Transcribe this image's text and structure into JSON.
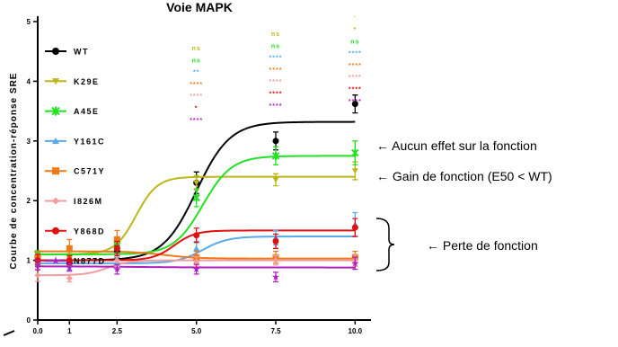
{
  "chart_data": {
    "type": "line",
    "title": "Voie MAPK",
    "xlabel": "",
    "ylabel": "Courbe de concentration-réponse SRE",
    "xlim": [
      0,
      10.5
    ],
    "ylim": [
      0,
      5
    ],
    "x_ticks": [
      {
        "v": 0,
        "label": "0.0"
      },
      {
        "v": 1,
        "label": "1"
      },
      {
        "v": 2.5,
        "label": "2.5"
      },
      {
        "v": 5,
        "label": "5.0"
      },
      {
        "v": 7.5,
        "label": "7.5"
      },
      {
        "v": 10,
        "label": "10.0"
      }
    ],
    "y_ticks": [
      {
        "v": 0,
        "label": "0"
      },
      {
        "v": 1,
        "label": "1"
      },
      {
        "v": 2,
        "label": "2"
      },
      {
        "v": 3,
        "label": "3"
      },
      {
        "v": 4,
        "label": "4"
      },
      {
        "v": 5,
        "label": "5"
      }
    ],
    "legend_position": "left",
    "series": [
      {
        "name": "WT",
        "color": "#000000",
        "marker": "circle",
        "fit": {
          "bottom": 1.0,
          "top": 3.32,
          "ec50": 5.0,
          "hill": 1.9
        },
        "x": [
          0,
          1,
          2.5,
          5,
          7.5,
          10
        ],
        "y": [
          1.0,
          0.95,
          1.15,
          2.3,
          3.0,
          3.62
        ],
        "err": [
          0.06,
          0.06,
          0.1,
          0.18,
          0.15,
          0.15
        ]
      },
      {
        "name": "K29E",
        "color": "#bdb61a",
        "marker": "triangle-down",
        "fit": {
          "bottom": 1.1,
          "top": 2.4,
          "ec50": 3.1,
          "hill": 3.0
        },
        "x": [
          0,
          1,
          2.5,
          5,
          7.5,
          10
        ],
        "y": [
          1.1,
          1.08,
          1.2,
          2.3,
          2.35,
          2.5
        ],
        "err": [
          0.06,
          0.06,
          0.1,
          0.12,
          0.1,
          0.15
        ]
      },
      {
        "name": "A45E",
        "color": "#22e022",
        "marker": "cross",
        "fit": {
          "bottom": 1.1,
          "top": 2.75,
          "ec50": 5.2,
          "hill": 2.2
        },
        "x": [
          0,
          1,
          2.5,
          5,
          7.5,
          10
        ],
        "y": [
          1.1,
          1.05,
          1.25,
          2.05,
          2.75,
          2.8
        ],
        "err": [
          0.06,
          0.06,
          0.12,
          0.15,
          0.15,
          0.2
        ]
      },
      {
        "name": "Y161C",
        "color": "#5aaae8",
        "marker": "triangle-up",
        "fit": {
          "bottom": 0.95,
          "top": 1.4,
          "ec50": 5.2,
          "hill": 2.5
        },
        "x": [
          0,
          1,
          2.5,
          5,
          7.5,
          10
        ],
        "y": [
          0.95,
          0.92,
          0.95,
          1.2,
          1.38,
          1.6
        ],
        "err": [
          0.1,
          0.08,
          0.1,
          0.12,
          0.12,
          0.2
        ]
      },
      {
        "name": "C571Y",
        "color": "#f07a1a",
        "marker": "square",
        "fit": {
          "bottom": 1.15,
          "top": 1.03,
          "ec50": 4.0,
          "hill": 2.0
        },
        "x": [
          0,
          1,
          2.5,
          5,
          7.5,
          10
        ],
        "y": [
          1.05,
          1.2,
          1.35,
          1.05,
          1.05,
          1.05
        ],
        "err": [
          0.1,
          0.15,
          0.15,
          0.1,
          0.1,
          0.1
        ]
      },
      {
        "name": "I826M",
        "color": "#f29c9c",
        "marker": "diamond",
        "fit": {
          "bottom": 0.75,
          "top": 1.0,
          "ec50": 2.2,
          "hill": 3.0
        },
        "x": [
          0,
          1,
          2.5,
          5,
          7.5,
          10
        ],
        "y": [
          0.75,
          0.7,
          1.0,
          0.98,
          1.0,
          1.0
        ],
        "err": [
          0.1,
          0.06,
          0.1,
          0.08,
          0.08,
          0.1
        ]
      },
      {
        "name": "Y868D",
        "color": "#e01010",
        "marker": "circle",
        "fit": {
          "bottom": 1.0,
          "top": 1.5,
          "ec50": 4.3,
          "hill": 3.0
        },
        "x": [
          0,
          1,
          2.5,
          5,
          7.5,
          10
        ],
        "y": [
          1.0,
          1.0,
          1.2,
          1.42,
          1.32,
          1.55
        ],
        "err": [
          0.1,
          0.08,
          0.12,
          0.12,
          0.12,
          0.15
        ]
      },
      {
        "name": "N877D",
        "color": "#b020c0",
        "marker": "star",
        "fit": {
          "bottom": 0.9,
          "top": 0.88,
          "ec50": 3.0,
          "hill": 1.0
        },
        "x": [
          0,
          1,
          2.5,
          5,
          7.5,
          10
        ],
        "y": [
          0.92,
          0.88,
          0.85,
          0.85,
          0.72,
          0.95
        ],
        "err": [
          0.08,
          0.06,
          0.08,
          0.08,
          0.08,
          0.1
        ]
      }
    ],
    "significance": [
      {
        "x": 5,
        "labels": [
          {
            "text": "ns",
            "color": "#bdb61a"
          },
          {
            "text": "ns",
            "color": "#22e022"
          },
          {
            "text": "**",
            "color": "#5aaae8"
          },
          {
            "text": "****",
            "color": "#f07a1a"
          },
          {
            "text": "****",
            "color": "#f29c9c"
          },
          {
            "text": "*",
            "color": "#e01010"
          },
          {
            "text": "****",
            "color": "#b020c0"
          }
        ]
      },
      {
        "x": 7.5,
        "labels": [
          {
            "text": "ns",
            "color": "#bdb61a"
          },
          {
            "text": "ns",
            "color": "#22e022"
          },
          {
            "text": "****",
            "color": "#5aaae8"
          },
          {
            "text": "****",
            "color": "#f07a1a"
          },
          {
            "text": "****",
            "color": "#f29c9c"
          },
          {
            "text": "****",
            "color": "#e01010"
          },
          {
            "text": "****",
            "color": "#b020c0"
          }
        ]
      },
      {
        "x": 10,
        "labels": [
          {
            "text": "*",
            "color": "#bdb61a"
          },
          {
            "text": "ns",
            "color": "#22e022"
          },
          {
            "text": "****",
            "color": "#5aaae8"
          },
          {
            "text": "****",
            "color": "#f07a1a"
          },
          {
            "text": "****",
            "color": "#f29c9c"
          },
          {
            "text": "****",
            "color": "#e01010"
          },
          {
            "text": "****",
            "color": "#b020c0"
          }
        ]
      }
    ],
    "annotations": [
      {
        "text": "← Aucun effet sur la fonction"
      },
      {
        "text": "← Gain de fonction (E50 < WT)"
      },
      {
        "text": "← Perte de fonction"
      }
    ]
  }
}
